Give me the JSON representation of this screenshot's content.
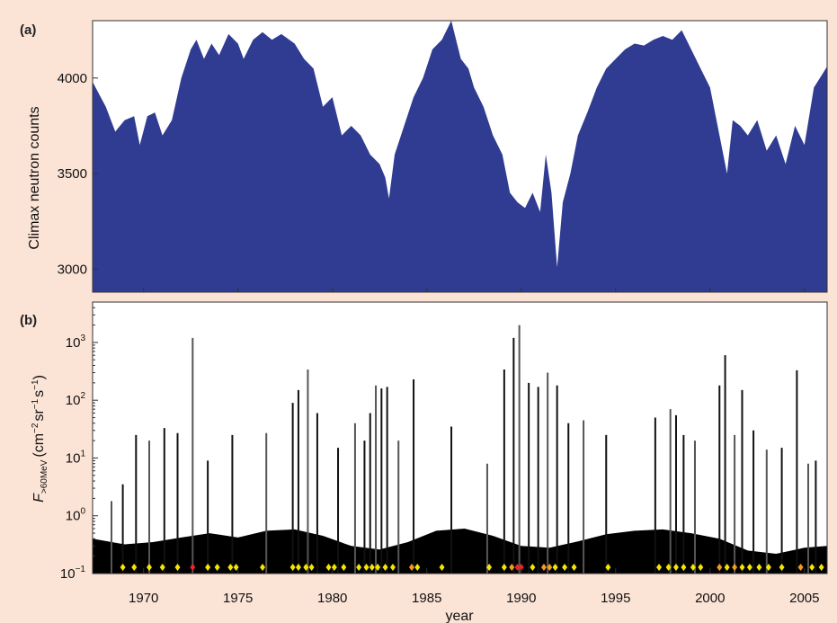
{
  "colors": {
    "page_bg": "#fbe3d6",
    "neutron_fill": "#2f3c92",
    "proton_fill": "#000000",
    "marker_yellow": "#f3e600",
    "marker_orange": "#f29b22",
    "marker_red": "#e8262b"
  },
  "chart_data": [
    {
      "type": "area",
      "panel_label": "(a)",
      "ylabel": "Climax neutron counts",
      "xlim": [
        1967.3,
        2006.2
      ],
      "ylim": [
        2880,
        4300
      ],
      "yticks": [
        3000,
        3500,
        4000
      ],
      "ytick_labels": [
        "3000",
        "3500",
        "4000"
      ],
      "grid": false,
      "x": [
        1967.3,
        1968.0,
        1968.5,
        1969.0,
        1969.5,
        1969.8,
        1970.2,
        1970.6,
        1971.0,
        1971.5,
        1972.0,
        1972.5,
        1972.8,
        1973.2,
        1973.6,
        1974.0,
        1974.5,
        1975.0,
        1975.3,
        1975.8,
        1976.3,
        1976.8,
        1977.3,
        1978.0,
        1978.5,
        1979.0,
        1979.5,
        1980.0,
        1980.5,
        1981.0,
        1981.5,
        1982.0,
        1982.5,
        1982.8,
        1983.0,
        1983.3,
        1983.8,
        1984.3,
        1984.8,
        1985.3,
        1985.8,
        1986.3,
        1986.8,
        1987.2,
        1987.5,
        1988.0,
        1988.5,
        1989.0,
        1989.4,
        1989.8,
        1990.2,
        1990.6,
        1991.0,
        1991.3,
        1991.6,
        1991.9,
        1992.2,
        1992.6,
        1993.0,
        1993.5,
        1994.0,
        1994.5,
        1995.0,
        1995.5,
        1996.0,
        1996.5,
        1997.0,
        1997.5,
        1998.0,
        1998.5,
        1999.0,
        1999.5,
        2000.0,
        2000.5,
        2000.9,
        2001.2,
        2001.6,
        2002.0,
        2002.5,
        2003.0,
        2003.5,
        2004.0,
        2004.5,
        2005.0,
        2005.5,
        2006.2
      ],
      "y": [
        3980,
        3850,
        3720,
        3780,
        3800,
        3650,
        3800,
        3820,
        3700,
        3780,
        4000,
        4150,
        4200,
        4100,
        4180,
        4120,
        4230,
        4180,
        4100,
        4200,
        4240,
        4200,
        4230,
        4180,
        4100,
        4050,
        3850,
        3900,
        3700,
        3750,
        3700,
        3600,
        3550,
        3480,
        3370,
        3600,
        3750,
        3900,
        4000,
        4150,
        4200,
        4300,
        4100,
        4050,
        3950,
        3850,
        3700,
        3600,
        3400,
        3350,
        3320,
        3400,
        3300,
        3600,
        3400,
        3010,
        3350,
        3500,
        3700,
        3820,
        3950,
        4050,
        4100,
        4150,
        4180,
        4170,
        4200,
        4220,
        4200,
        4250,
        4150,
        4050,
        3950,
        3700,
        3500,
        3780,
        3750,
        3700,
        3780,
        3620,
        3700,
        3550,
        3750,
        3650,
        3950,
        4060
      ]
    },
    {
      "type": "bar",
      "panel_label": "(b)",
      "ylabel": "F",
      "ylabel_subscript": ">60MeV",
      "ylabel_units": "(cm",
      "ylabel_units_parts": [
        "(cm",
        "−2",
        "sr",
        "−1",
        "s",
        "−1",
        ")"
      ],
      "xlabel": "year",
      "xlim": [
        1967.3,
        2006.2
      ],
      "ylim": [
        0.1,
        5000
      ],
      "yscale": "log",
      "yticks": [
        0.1,
        1,
        10,
        100,
        1000
      ],
      "ytick_labels_base": [
        "10",
        "10",
        "10",
        "10",
        "10"
      ],
      "ytick_labels_exp": [
        "−1",
        "0",
        "1",
        "2",
        "3"
      ],
      "xticks": [
        1970,
        1975,
        1980,
        1985,
        1990,
        1995,
        2000,
        2005
      ],
      "xtick_labels": [
        "1970",
        "1975",
        "1980",
        "1985",
        "1990",
        "1995",
        "2000",
        "2005"
      ],
      "grid": false,
      "background_x": [
        1967.3,
        1969.0,
        1970.5,
        1972.0,
        1973.5,
        1975.0,
        1976.5,
        1978.0,
        1979.5,
        1981.0,
        1982.5,
        1984.0,
        1985.5,
        1987.0,
        1988.5,
        1990.0,
        1991.5,
        1993.0,
        1994.5,
        1996.0,
        1997.5,
        1999.0,
        2000.5,
        2002.0,
        2003.5,
        2005.0,
        2006.2
      ],
      "background_y": [
        0.4,
        0.32,
        0.35,
        0.42,
        0.5,
        0.42,
        0.55,
        0.58,
        0.45,
        0.3,
        0.26,
        0.35,
        0.55,
        0.6,
        0.45,
        0.3,
        0.28,
        0.36,
        0.48,
        0.55,
        0.58,
        0.5,
        0.4,
        0.25,
        0.22,
        0.28,
        0.3
      ],
      "spikes": [
        {
          "year": 1968.3,
          "flux": 1.8
        },
        {
          "year": 1968.9,
          "flux": 3.5
        },
        {
          "year": 1969.6,
          "flux": 25
        },
        {
          "year": 1970.3,
          "flux": 20
        },
        {
          "year": 1971.1,
          "flux": 33
        },
        {
          "year": 1971.8,
          "flux": 27
        },
        {
          "year": 1972.6,
          "flux": 1200
        },
        {
          "year": 1973.4,
          "flux": 9
        },
        {
          "year": 1974.7,
          "flux": 25
        },
        {
          "year": 1976.5,
          "flux": 27
        },
        {
          "year": 1977.9,
          "flux": 90
        },
        {
          "year": 1978.2,
          "flux": 150
        },
        {
          "year": 1978.7,
          "flux": 340
        },
        {
          "year": 1979.2,
          "flux": 60
        },
        {
          "year": 1980.3,
          "flux": 15
        },
        {
          "year": 1981.2,
          "flux": 40
        },
        {
          "year": 1981.7,
          "flux": 20
        },
        {
          "year": 1982.0,
          "flux": 60
        },
        {
          "year": 1982.3,
          "flux": 180
        },
        {
          "year": 1982.6,
          "flux": 160
        },
        {
          "year": 1982.9,
          "flux": 170
        },
        {
          "year": 1983.5,
          "flux": 20
        },
        {
          "year": 1984.3,
          "flux": 230
        },
        {
          "year": 1986.3,
          "flux": 35
        },
        {
          "year": 1988.2,
          "flux": 8
        },
        {
          "year": 1989.1,
          "flux": 340
        },
        {
          "year": 1989.6,
          "flux": 1200
        },
        {
          "year": 1989.9,
          "flux": 2000
        },
        {
          "year": 1990.4,
          "flux": 200
        },
        {
          "year": 1990.9,
          "flux": 170
        },
        {
          "year": 1991.4,
          "flux": 300
        },
        {
          "year": 1991.9,
          "flux": 180
        },
        {
          "year": 1992.5,
          "flux": 40
        },
        {
          "year": 1993.3,
          "flux": 45
        },
        {
          "year": 1994.5,
          "flux": 25
        },
        {
          "year": 1997.1,
          "flux": 50
        },
        {
          "year": 1997.9,
          "flux": 70
        },
        {
          "year": 1998.2,
          "flux": 55
        },
        {
          "year": 1998.6,
          "flux": 25
        },
        {
          "year": 1999.2,
          "flux": 20
        },
        {
          "year": 2000.5,
          "flux": 180
        },
        {
          "year": 2000.8,
          "flux": 600
        },
        {
          "year": 2001.3,
          "flux": 25
        },
        {
          "year": 2001.7,
          "flux": 150
        },
        {
          "year": 2002.3,
          "flux": 30
        },
        {
          "year": 2003.0,
          "flux": 14
        },
        {
          "year": 2003.8,
          "flux": 15
        },
        {
          "year": 2004.6,
          "flux": 330
        },
        {
          "year": 2005.2,
          "flux": 8
        },
        {
          "year": 2005.6,
          "flux": 9
        }
      ],
      "event_markers": [
        {
          "year": 1968.9,
          "color": "yellow"
        },
        {
          "year": 1969.5,
          "color": "yellow"
        },
        {
          "year": 1970.3,
          "color": "yellow"
        },
        {
          "year": 1971.0,
          "color": "yellow"
        },
        {
          "year": 1971.8,
          "color": "yellow"
        },
        {
          "year": 1972.6,
          "color": "red"
        },
        {
          "year": 1973.4,
          "color": "yellow"
        },
        {
          "year": 1973.9,
          "color": "yellow"
        },
        {
          "year": 1974.6,
          "color": "yellow"
        },
        {
          "year": 1974.9,
          "color": "yellow"
        },
        {
          "year": 1976.3,
          "color": "yellow"
        },
        {
          "year": 1977.9,
          "color": "yellow"
        },
        {
          "year": 1978.2,
          "color": "yellow"
        },
        {
          "year": 1978.6,
          "color": "yellow"
        },
        {
          "year": 1978.9,
          "color": "yellow"
        },
        {
          "year": 1979.8,
          "color": "yellow"
        },
        {
          "year": 1980.1,
          "color": "yellow"
        },
        {
          "year": 1980.6,
          "color": "yellow"
        },
        {
          "year": 1981.4,
          "color": "yellow"
        },
        {
          "year": 1981.8,
          "color": "yellow"
        },
        {
          "year": 1982.1,
          "color": "yellow"
        },
        {
          "year": 1982.4,
          "color": "yellow"
        },
        {
          "year": 1982.8,
          "color": "yellow"
        },
        {
          "year": 1983.2,
          "color": "yellow"
        },
        {
          "year": 1984.2,
          "color": "orange"
        },
        {
          "year": 1984.5,
          "color": "yellow"
        },
        {
          "year": 1985.8,
          "color": "yellow"
        },
        {
          "year": 1988.3,
          "color": "yellow"
        },
        {
          "year": 1989.1,
          "color": "yellow"
        },
        {
          "year": 1989.5,
          "color": "orange"
        },
        {
          "year": 1989.8,
          "color": "red"
        },
        {
          "year": 1990.0,
          "color": "red"
        },
        {
          "year": 1990.6,
          "color": "yellow"
        },
        {
          "year": 1991.2,
          "color": "orange"
        },
        {
          "year": 1991.5,
          "color": "orange"
        },
        {
          "year": 1991.8,
          "color": "yellow"
        },
        {
          "year": 1992.3,
          "color": "yellow"
        },
        {
          "year": 1992.8,
          "color": "yellow"
        },
        {
          "year": 1994.6,
          "color": "yellow"
        },
        {
          "year": 1997.3,
          "color": "yellow"
        },
        {
          "year": 1997.8,
          "color": "yellow"
        },
        {
          "year": 1998.2,
          "color": "yellow"
        },
        {
          "year": 1998.6,
          "color": "yellow"
        },
        {
          "year": 1999.1,
          "color": "yellow"
        },
        {
          "year": 1999.5,
          "color": "yellow"
        },
        {
          "year": 2000.5,
          "color": "orange"
        },
        {
          "year": 2000.9,
          "color": "yellow"
        },
        {
          "year": 2001.3,
          "color": "orange"
        },
        {
          "year": 2001.7,
          "color": "yellow"
        },
        {
          "year": 2002.1,
          "color": "yellow"
        },
        {
          "year": 2002.6,
          "color": "yellow"
        },
        {
          "year": 2003.1,
          "color": "yellow"
        },
        {
          "year": 2003.8,
          "color": "yellow"
        },
        {
          "year": 2004.8,
          "color": "orange"
        },
        {
          "year": 2005.4,
          "color": "yellow"
        },
        {
          "year": 2005.9,
          "color": "yellow"
        }
      ]
    }
  ]
}
